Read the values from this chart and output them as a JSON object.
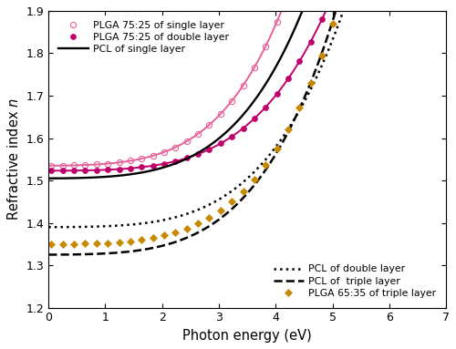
{
  "xlabel": "Photon energy (eV)",
  "ylabel": "Refractive index $n$",
  "xlim": [
    0,
    7
  ],
  "ylim": [
    1.2,
    1.9
  ],
  "yticks": [
    1.2,
    1.3,
    1.4,
    1.5,
    1.6,
    1.7,
    1.8,
    1.9
  ],
  "xticks": [
    0,
    1,
    2,
    3,
    4,
    5,
    6,
    7
  ],
  "curves": [
    {
      "key": "plga_single",
      "label": "PLGA 75:25 of single layer",
      "color": "#e8609a",
      "linestyle": "-",
      "marker": "o",
      "mfc": "none",
      "ms": 4.5,
      "lw": 1.4,
      "n0": 1.535,
      "A": 0.0032,
      "B": 0.0011
    },
    {
      "key": "plga_double",
      "label": "PLGA 75:25 of double layer",
      "color": "#c0006a",
      "linestyle": "-",
      "marker": "o",
      "mfc": "#c0006a",
      "ms": 4,
      "lw": 1.4,
      "n0": 1.523,
      "A": 0.0015,
      "B": 0.0006
    },
    {
      "key": "pcl_single",
      "label": "PCL of single layer",
      "color": "#000000",
      "linestyle": "-",
      "marker": "none",
      "mfc": "none",
      "ms": 0,
      "lw": 1.7,
      "n0": 1.505,
      "A": 0.0028,
      "B": 0.00085
    },
    {
      "key": "pcl_double",
      "label": "PCL of double layer",
      "color": "#000000",
      "linestyle": ":",
      "marker": "none",
      "mfc": "none",
      "ms": 0,
      "lw": 1.8,
      "n0": 1.39,
      "A": 0.0014,
      "B": 0.00065
    },
    {
      "key": "pcl_triple",
      "label": "PCL of  triple layer",
      "color": "#000000",
      "linestyle": "--",
      "marker": "none",
      "mfc": "none",
      "ms": 0,
      "lw": 1.8,
      "n0": 1.325,
      "A": 0.002,
      "B": 0.0008
    },
    {
      "key": "plga_triple",
      "label": "PLGA 65:35 of triple layer",
      "color": "#c88a00",
      "linestyle": "none",
      "marker": "D",
      "mfc": "#c88a00",
      "ms": 3.8,
      "lw": 0,
      "n0": 1.35,
      "A": 0.0018,
      "B": 0.00075
    }
  ],
  "leg1_indices": [
    0,
    1,
    2
  ],
  "leg2_indices": [
    3,
    4,
    5
  ],
  "leg1_loc": "upper left",
  "leg2_loc": "lower right",
  "leg1_bbox": null,
  "leg2_bbox": null,
  "n_markers": 36
}
